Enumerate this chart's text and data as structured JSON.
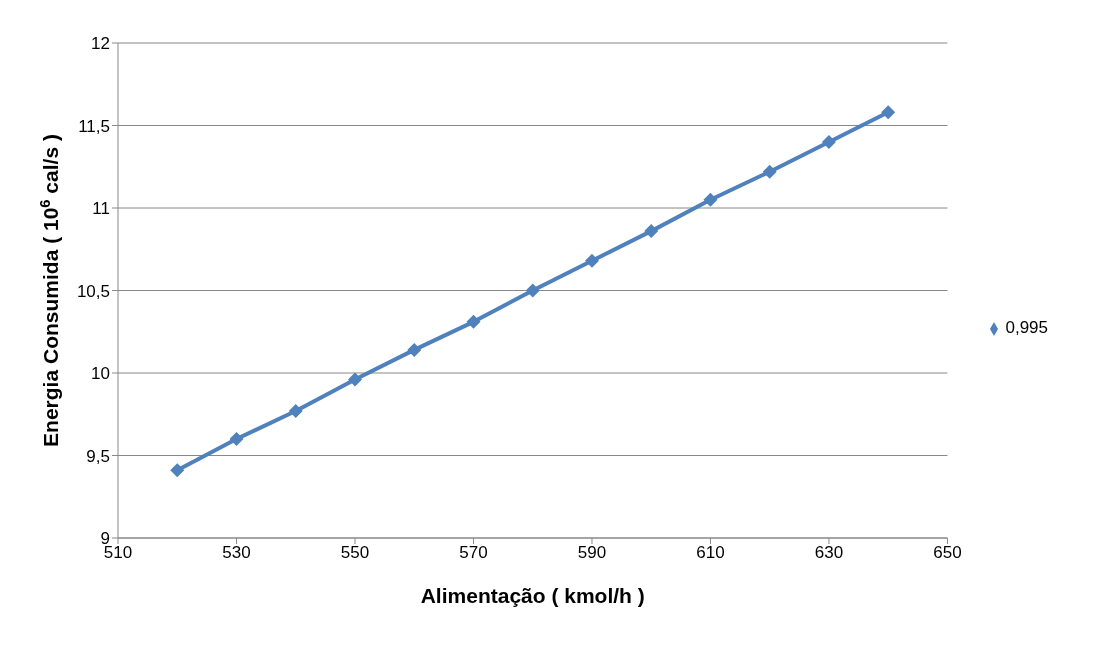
{
  "chart_data": {
    "type": "line",
    "xlabel": "Alimentação ( kmol/h )",
    "ylabel": "Energia Consumida ( 10$^{6}$ cal/s )",
    "x": [
      520,
      530,
      540,
      550,
      560,
      570,
      580,
      590,
      600,
      610,
      620,
      630,
      640
    ],
    "series": [
      {
        "name": "0,995",
        "color": "#4f81bd",
        "values": [
          9.41,
          9.6,
          9.77,
          9.96,
          10.14,
          10.31,
          10.5,
          10.68,
          10.86,
          11.05,
          11.22,
          11.4,
          11.58
        ]
      }
    ],
    "xlim": [
      510,
      650
    ],
    "xticks": [
      510,
      530,
      550,
      570,
      590,
      610,
      630,
      650
    ],
    "ylim": [
      9,
      12
    ],
    "yticks": [
      9,
      {
        "value": 9.5,
        "label": "9,5"
      },
      10,
      {
        "value": 10.5,
        "label": "10,5"
      },
      11,
      {
        "value": 11.5,
        "label": "11,5"
      },
      12
    ],
    "grid": "y",
    "legend": "right",
    "marker": "diamond",
    "line_style": "solid"
  }
}
